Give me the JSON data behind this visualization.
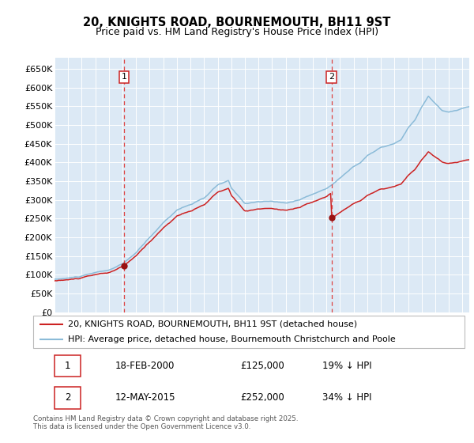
{
  "title": "20, KNIGHTS ROAD, BOURNEMOUTH, BH11 9ST",
  "subtitle": "Price paid vs. HM Land Registry's House Price Index (HPI)",
  "ylim": [
    0,
    680000
  ],
  "yticks": [
    0,
    50000,
    100000,
    150000,
    200000,
    250000,
    300000,
    350000,
    400000,
    450000,
    500000,
    550000,
    600000,
    650000
  ],
  "ytick_labels": [
    "£0",
    "£50K",
    "£100K",
    "£150K",
    "£200K",
    "£250K",
    "£300K",
    "£350K",
    "£400K",
    "£450K",
    "£500K",
    "£550K",
    "£600K",
    "£650K"
  ],
  "background_color": "#dce9f5",
  "sale1_date": 2000.12,
  "sale1_price": 125000,
  "sale2_date": 2015.37,
  "sale2_price": 252000,
  "hpi_color": "#8bbbd8",
  "price_color": "#cc2222",
  "sale_marker_color": "#991111",
  "vline_color": "#dd4444",
  "legend1_label": "20, KNIGHTS ROAD, BOURNEMOUTH, BH11 9ST (detached house)",
  "legend2_label": "HPI: Average price, detached house, Bournemouth Christchurch and Poole",
  "footer": "Contains HM Land Registry data © Crown copyright and database right 2025.\nThis data is licensed under the Open Government Licence v3.0.",
  "title_fontsize": 10.5,
  "subtitle_fontsize": 9,
  "tick_fontsize": 8,
  "legend_fontsize": 8,
  "ann_fontsize": 8.5
}
